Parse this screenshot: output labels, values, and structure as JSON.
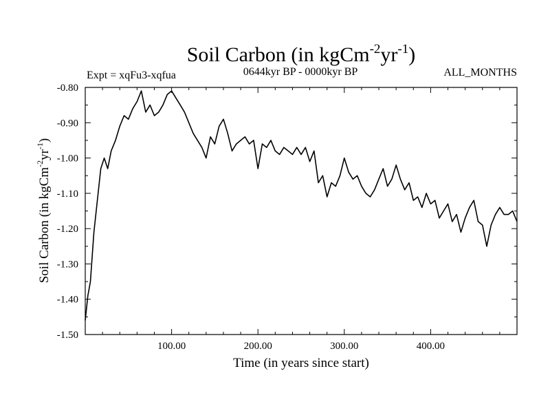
{
  "chart_data": {
    "type": "line",
    "title_main": "Soil Carbon (in kgCm",
    "title_exp1": "-2",
    "title_mid": "yr",
    "title_exp2": "-1",
    "title_end": ")",
    "subtitle_left": "Expt = xqFu3-xqfua",
    "subtitle_center": "0644kyr BP - 0000kyr BP",
    "subtitle_right": "ALL_MONTHS",
    "xlabel": "Time (in years since start)",
    "ylabel_main": "Soil Carbon (in kgCm",
    "ylabel_exp1": "-2",
    "ylabel_mid": "yr",
    "ylabel_exp2": "-1",
    "ylabel_end": ")",
    "xlim": [
      0,
      500
    ],
    "ylim": [
      -1.5,
      -0.8
    ],
    "xticks": [
      100,
      200,
      300,
      400
    ],
    "xtick_labels": [
      "100.00",
      "200.00",
      "300.00",
      "400.00"
    ],
    "yticks": [
      -0.8,
      -0.9,
      -1.0,
      -1.1,
      -1.2,
      -1.3,
      -1.4,
      -1.5
    ],
    "ytick_labels": [
      "-0.80",
      "-0.90",
      "-1.00",
      "-1.10",
      "-1.20",
      "-1.30",
      "-1.40",
      "-1.50"
    ],
    "series": [
      {
        "name": "Soil Carbon",
        "color": "#000000",
        "x": [
          0,
          3,
          6,
          10,
          14,
          18,
          22,
          26,
          30,
          35,
          40,
          45,
          50,
          55,
          60,
          65,
          70,
          75,
          80,
          85,
          90,
          95,
          100,
          105,
          110,
          115,
          120,
          125,
          130,
          135,
          140,
          145,
          150,
          155,
          160,
          165,
          170,
          175,
          180,
          185,
          190,
          195,
          200,
          205,
          210,
          215,
          220,
          225,
          230,
          235,
          240,
          245,
          250,
          255,
          260,
          265,
          270,
          275,
          280,
          285,
          290,
          295,
          300,
          305,
          310,
          315,
          320,
          325,
          330,
          335,
          340,
          345,
          350,
          355,
          360,
          365,
          370,
          375,
          380,
          385,
          390,
          395,
          400,
          405,
          410,
          415,
          420,
          425,
          430,
          435,
          440,
          445,
          450,
          455,
          460,
          465,
          470,
          475,
          480,
          485,
          490,
          495,
          500
        ],
        "values": [
          -1.46,
          -1.39,
          -1.35,
          -1.21,
          -1.12,
          -1.03,
          -1.0,
          -1.03,
          -0.98,
          -0.95,
          -0.91,
          -0.88,
          -0.89,
          -0.86,
          -0.84,
          -0.81,
          -0.87,
          -0.85,
          -0.88,
          -0.87,
          -0.85,
          -0.82,
          -0.81,
          -0.83,
          -0.85,
          -0.87,
          -0.9,
          -0.93,
          -0.95,
          -0.97,
          -1.0,
          -0.94,
          -0.96,
          -0.91,
          -0.89,
          -0.93,
          -0.98,
          -0.96,
          -0.95,
          -0.94,
          -0.96,
          -0.95,
          -1.03,
          -0.96,
          -0.97,
          -0.95,
          -0.98,
          -0.99,
          -0.97,
          -0.98,
          -0.99,
          -0.97,
          -0.99,
          -0.97,
          -1.01,
          -0.98,
          -1.07,
          -1.05,
          -1.11,
          -1.07,
          -1.08,
          -1.05,
          -1.0,
          -1.04,
          -1.06,
          -1.05,
          -1.08,
          -1.1,
          -1.11,
          -1.09,
          -1.06,
          -1.03,
          -1.08,
          -1.06,
          -1.02,
          -1.06,
          -1.09,
          -1.07,
          -1.12,
          -1.11,
          -1.14,
          -1.1,
          -1.13,
          -1.12,
          -1.17,
          -1.15,
          -1.13,
          -1.18,
          -1.16,
          -1.21,
          -1.17,
          -1.14,
          -1.12,
          -1.18,
          -1.19,
          -1.25,
          -1.19,
          -1.16,
          -1.14,
          -1.16,
          -1.16,
          -1.15,
          -1.18
        ]
      }
    ]
  }
}
